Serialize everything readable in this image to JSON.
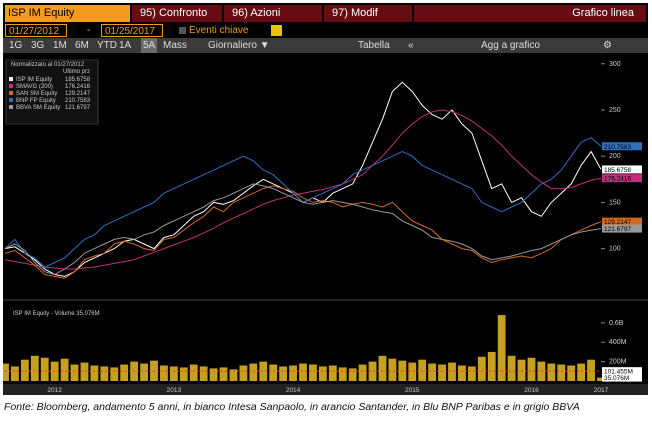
{
  "header": {
    "ticker": "ISP IM Equity",
    "tabs": [
      "95) Confronto",
      "96) Azioni",
      "97) Modif"
    ],
    "view": "Grafico linea"
  },
  "dates": {
    "start": "01/27/2012",
    "separator": "-",
    "end": "01/25/2017",
    "events": "Eventi chiave"
  },
  "toolbar": {
    "periods": [
      "1G",
      "3G",
      "1M",
      "6M",
      "YTD",
      "1A",
      "5A",
      "Mass"
    ],
    "frequency": "Giornaliero ▼",
    "table": "Tabella",
    "back": "«",
    "add": "Agg a grafico",
    "settings": "⚙"
  },
  "chart_data": {
    "type": "line",
    "legend_title": "Normalizzato al 01/27/2012",
    "legend_subtitle": "Ultimo prz",
    "categories": [
      null,
      null,
      null,
      null,
      null,
      "2012",
      null,
      null,
      null,
      null,
      null,
      null,
      null,
      null,
      null,
      null,
      null,
      "2013",
      null,
      null,
      null,
      null,
      null,
      null,
      null,
      null,
      null,
      null,
      null,
      "2014",
      null,
      null,
      null,
      null,
      null,
      null,
      null,
      null,
      null,
      null,
      null,
      "2015",
      null,
      null,
      null,
      null,
      null,
      null,
      null,
      null,
      null,
      null,
      null,
      "2016",
      null,
      null,
      null,
      null,
      null,
      null,
      "2017"
    ],
    "ylim": [
      52,
      303
    ],
    "yticks": [
      100,
      150,
      200,
      250,
      300
    ],
    "series": [
      {
        "name": "ISP IM Equity",
        "color": "#ffffff",
        "values": [
          100,
          102,
          95,
          88,
          78,
          72,
          70,
          75,
          85,
          90,
          95,
          100,
          108,
          110,
          105,
          100,
          112,
          115,
          125,
          135,
          140,
          150,
          148,
          152,
          160,
          168,
          175,
          170,
          165,
          160,
          150,
          155,
          150,
          160,
          165,
          170,
          190,
          215,
          240,
          270,
          280,
          270,
          255,
          245,
          240,
          250,
          235,
          225,
          195,
          165,
          170,
          150,
          155,
          140,
          135,
          150,
          160,
          170,
          190,
          205,
          185.6758
        ]
      },
      {
        "name": "SMAVG (200)",
        "color": "#c0307a",
        "values": [
          88,
          86,
          84,
          82,
          80,
          79,
          78,
          78,
          79,
          80,
          82,
          84,
          86,
          88,
          92,
          96,
          100,
          104,
          108,
          112,
          117,
          122,
          128,
          133,
          138,
          143,
          148,
          152,
          155,
          158,
          160,
          162,
          164,
          167,
          170,
          175,
          180,
          190,
          200,
          212,
          225,
          235,
          243,
          248,
          250,
          248,
          244,
          238,
          230,
          222,
          212,
          200,
          190,
          180,
          172,
          165,
          165,
          166,
          170,
          174,
          176.2416
        ]
      },
      {
        "name": "SAN SM Equity",
        "color": "#d2691e",
        "values": [
          95,
          98,
          90,
          82,
          72,
          70,
          68,
          75,
          88,
          92,
          95,
          105,
          108,
          105,
          100,
          98,
          110,
          112,
          120,
          128,
          135,
          145,
          140,
          150,
          155,
          160,
          165,
          168,
          165,
          162,
          155,
          150,
          152,
          150,
          145,
          148,
          150,
          148,
          145,
          150,
          140,
          130,
          125,
          120,
          110,
          105,
          100,
          98,
          90,
          85,
          88,
          90,
          92,
          90,
          95,
          100,
          110,
          115,
          120,
          125,
          129.2147
        ]
      },
      {
        "name": "BNP FP Equity",
        "color": "#2f6fbf",
        "values": [
          100,
          110,
          95,
          90,
          80,
          85,
          90,
          100,
          110,
          115,
          125,
          130,
          135,
          140,
          145,
          150,
          160,
          165,
          170,
          175,
          180,
          185,
          190,
          195,
          200,
          195,
          185,
          180,
          170,
          160,
          150,
          155,
          160,
          165,
          170,
          180,
          185,
          190,
          195,
          200,
          205,
          200,
          190,
          185,
          180,
          175,
          170,
          165,
          150,
          145,
          140,
          145,
          150,
          160,
          170,
          175,
          185,
          200,
          215,
          220,
          210.7583
        ]
      },
      {
        "name": "BBVA SM Equity",
        "color": "#9a9a9a",
        "values": [
          100,
          105,
          98,
          85,
          75,
          72,
          78,
          85,
          95,
          100,
          105,
          110,
          112,
          110,
          115,
          118,
          125,
          130,
          135,
          140,
          145,
          152,
          155,
          160,
          165,
          170,
          168,
          165,
          160,
          155,
          150,
          148,
          150,
          152,
          150,
          148,
          145,
          142,
          140,
          138,
          130,
          125,
          120,
          112,
          110,
          108,
          105,
          100,
          92,
          88,
          90,
          92,
          95,
          98,
          100,
          105,
          110,
          115,
          118,
          120,
          121.6797
        ]
      }
    ],
    "volume": {
      "type": "bar",
      "legend": "ISP IM Equity - Volume 35.076M",
      "color": "#c8a020",
      "ylim": [
        0,
        650
      ],
      "yticks": [
        {
          "value": 600,
          "label": "0.6B"
        },
        {
          "value": 400,
          "label": "400M"
        },
        {
          "value": 200,
          "label": "200M"
        }
      ],
      "values": [
        180,
        150,
        220,
        260,
        240,
        200,
        230,
        170,
        190,
        160,
        150,
        140,
        170,
        200,
        180,
        210,
        160,
        150,
        140,
        170,
        150,
        130,
        140,
        120,
        160,
        180,
        200,
        170,
        150,
        160,
        180,
        170,
        150,
        160,
        140,
        130,
        170,
        200,
        260,
        230,
        210,
        190,
        220,
        180,
        170,
        190,
        160,
        150,
        250,
        300,
        680,
        260,
        220,
        240,
        200,
        180,
        170,
        160,
        180,
        220,
        35.076
      ],
      "value_labels": [
        null,
        null,
        null,
        null,
        null,
        null,
        null,
        null,
        null,
        null,
        null,
        null,
        null,
        null,
        null,
        null,
        null,
        null,
        null,
        null,
        null,
        null,
        null,
        null,
        null,
        null,
        null,
        null,
        null,
        null,
        null,
        null,
        null,
        null,
        null,
        null,
        null,
        null,
        null,
        null,
        null,
        null,
        null,
        null,
        null,
        null,
        null,
        null,
        null,
        null,
        null,
        null,
        null,
        null,
        null,
        null,
        null,
        null,
        null,
        null,
        "35.076M"
      ],
      "average": {
        "value": 101.455,
        "label": "101.455M"
      }
    }
  },
  "caption": "Fonte: Bloomberg, andamento 5 anni, in bianco Intesa Sanpaolo, in arancio Santander, in Blu BNP Paribas e in grigio BBVA"
}
